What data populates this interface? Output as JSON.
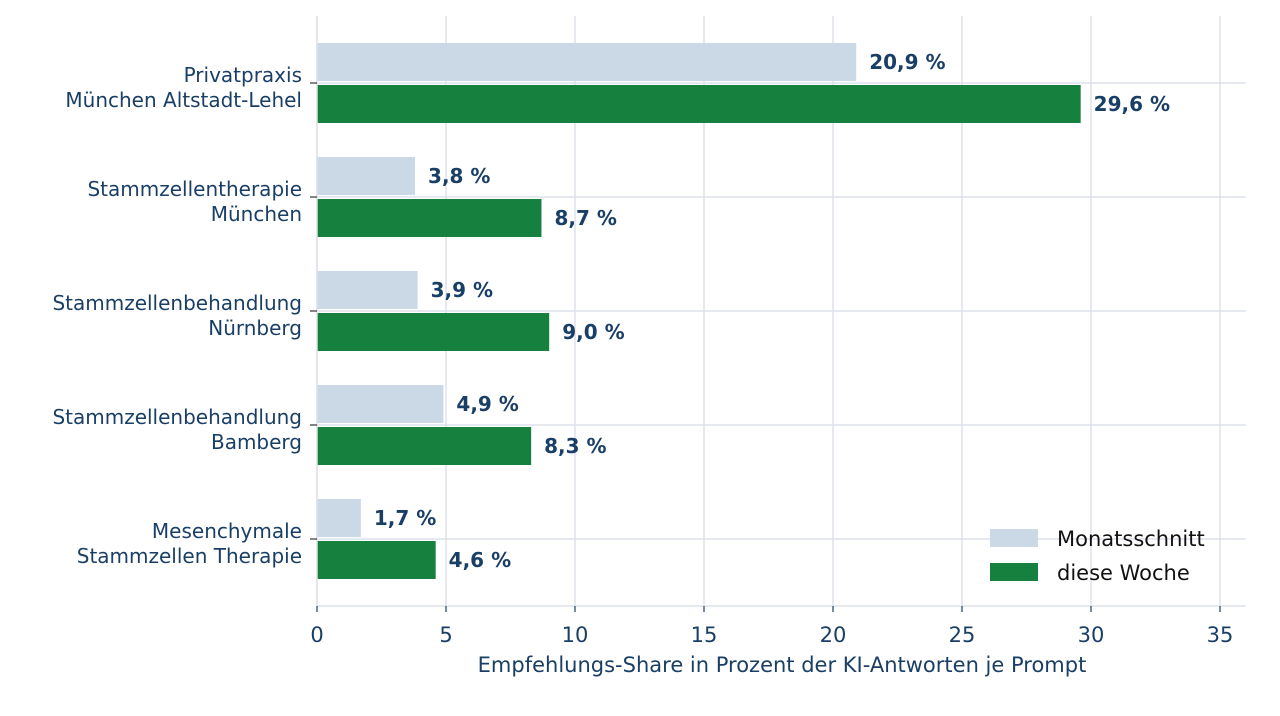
{
  "chart_data": {
    "type": "bar",
    "orientation": "horizontal",
    "categories": [
      [
        "Privatpraxis",
        "München Altstadt-Lehel"
      ],
      [
        "Stammzellentherapie",
        "München"
      ],
      [
        "Stammzellenbehandlung",
        "Nürnberg"
      ],
      [
        "Stammzellenbehandlung",
        "Bamberg"
      ],
      [
        "Mesenchymale",
        "Stammzellen Therapie"
      ]
    ],
    "series": [
      {
        "name": "Monatsschnitt",
        "color": "#cbd8e6",
        "values": [
          20.9,
          3.8,
          3.9,
          4.9,
          1.7
        ],
        "labels": [
          "20,9 %",
          "3,8 %",
          "3,9 %",
          "4,9 %",
          "1,7 %"
        ]
      },
      {
        "name": "diese Woche",
        "color": "#16813f",
        "values": [
          29.6,
          8.7,
          9.0,
          8.3,
          4.6
        ],
        "labels": [
          "29,6 %",
          "8,7 %",
          "9,0 %",
          "8,3 %",
          "4,6 %"
        ]
      }
    ],
    "xlabel": "Empfehlungs-Share in Prozent der KI-Antworten je Prompt",
    "ylabel": "",
    "xlim": [
      0,
      36
    ],
    "xticks": [
      "0",
      "5",
      "10",
      "15",
      "20",
      "25",
      "30",
      "35"
    ],
    "xtick_values": [
      0,
      5,
      10,
      15,
      20,
      25,
      30,
      35
    ],
    "grid": true,
    "legend_position": "bottom-right",
    "text_color": "#1a3f66",
    "grid_color": "#dde2ea"
  }
}
